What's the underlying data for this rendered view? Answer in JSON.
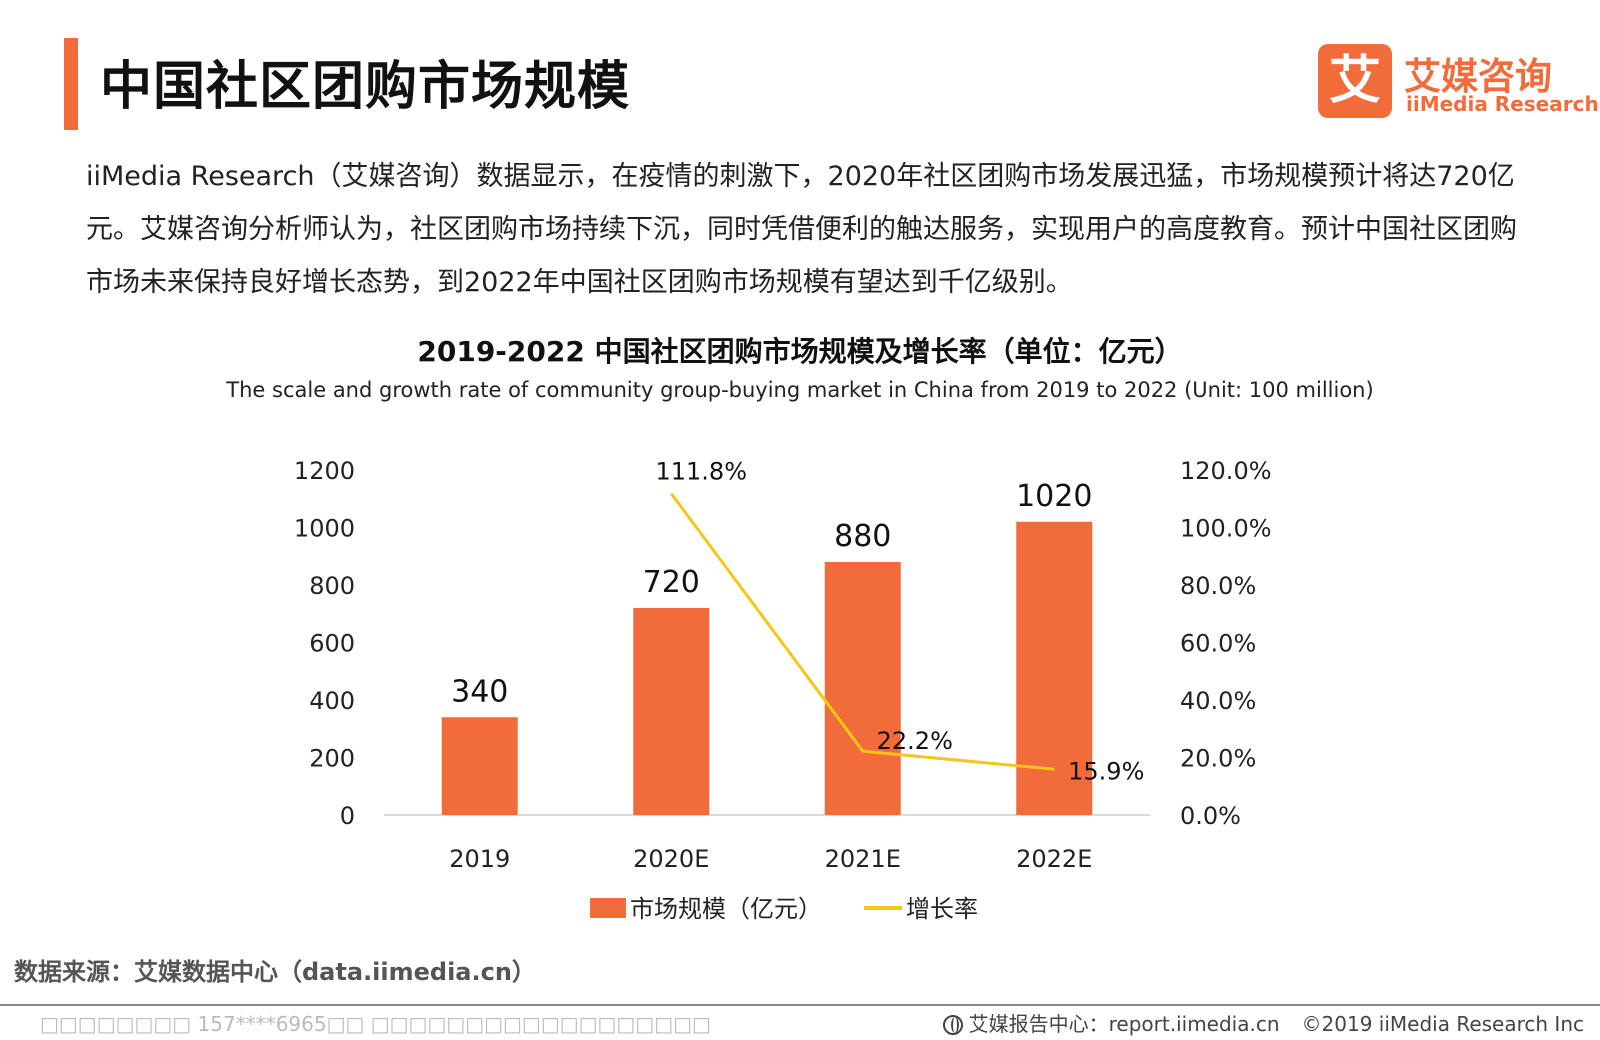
{
  "header": {
    "title": "中国社区团购市场规模",
    "logo_glyph": "艾",
    "logo_cn": "艾媒咨询",
    "logo_en": "iiMedia Research"
  },
  "intro": {
    "text": "iiMedia Research（艾媒咨询）数据显示，在疫情的刺激下，2020年社区团购市场发展迅猛，市场规模预计将达720亿元。艾媒咨询分析师认为，社区团购市场持续下沉，同时凭借便利的触达服务，实现用户的高度教育。预计中国社区团购市场未来保持良好增长态势，到2022年中国社区团购市场规模有望达到千亿级别。"
  },
  "chart_data": {
    "type": "bar",
    "title": "2019-2022 中国社区团购市场规模及增长率（单位：亿元）",
    "subtitle": "The scale and growth rate of community group-buying market in China from 2019 to 2022 (Unit: 100 million)",
    "categories": [
      "2019",
      "2020E",
      "2021E",
      "2022E"
    ],
    "series": [
      {
        "name": "市场规模（亿元）",
        "type": "bar",
        "axis": "left",
        "values": [
          340,
          720,
          880,
          1020
        ],
        "labels": [
          "340",
          "720",
          "880",
          "1020"
        ],
        "color": "#f26b3a"
      },
      {
        "name": "增长率",
        "type": "line",
        "axis": "right",
        "values": [
          null,
          111.8,
          22.2,
          15.9
        ],
        "labels": [
          "",
          "111.8%",
          "22.2%",
          "15.9%"
        ],
        "color": "#f5c518"
      }
    ],
    "y_left": {
      "ylim": [
        0,
        1200
      ],
      "ticks": [
        "0",
        "200",
        "400",
        "600",
        "800",
        "1000",
        "1200"
      ]
    },
    "y_right": {
      "ylim": [
        0,
        120
      ],
      "ticks": [
        "0.0%",
        "20.0%",
        "40.0%",
        "60.0%",
        "80.0%",
        "100.0%",
        "120.0%"
      ]
    },
    "grid": false,
    "legend": "bottom"
  },
  "footer": {
    "source": "数据来源：艾媒数据中心（data.iimedia.cn）",
    "watermark": "□□□□□□□□ 157****6965□□ □□□□□□□□□□□□□□□□□□",
    "report": "艾媒报告中心：report.iimedia.cn",
    "copyright": "©2019  iiMedia Research  Inc"
  }
}
